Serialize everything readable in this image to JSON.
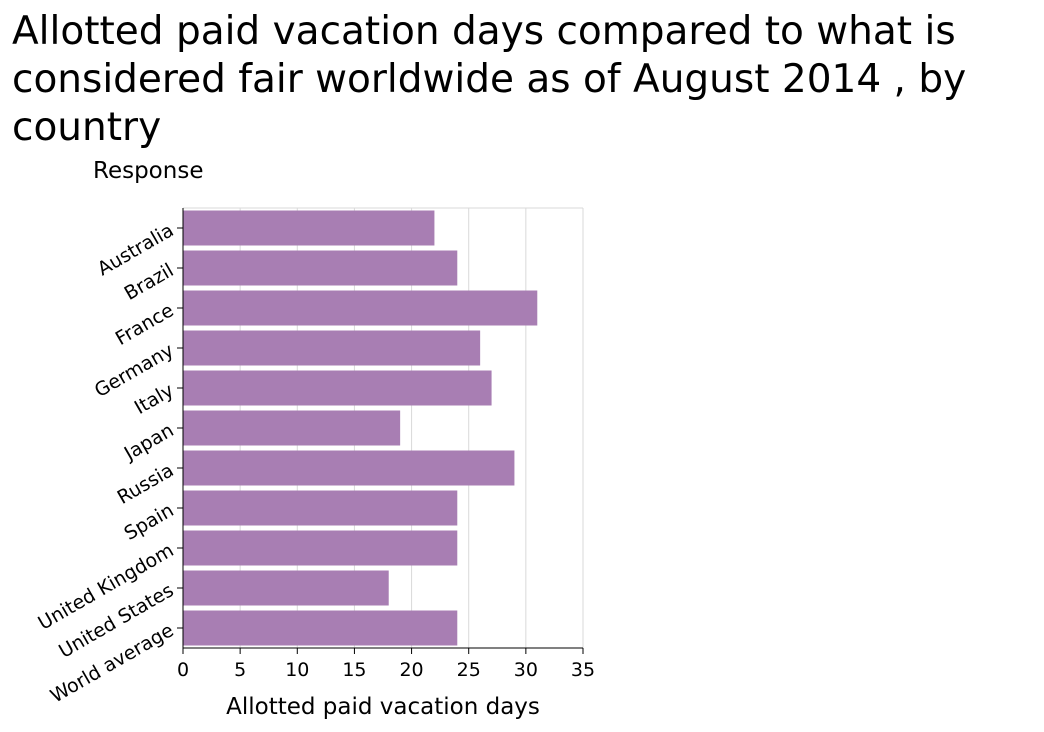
{
  "chart_data": {
    "type": "bar",
    "orientation": "horizontal",
    "title": "Allotted paid vacation days compared to what is considered fair worldwide as of August 2014 , by country",
    "ylabel": "Response",
    "xlabel": "Allotted paid vacation days",
    "categories": [
      "Australia",
      "Brazil",
      "France",
      "Germany",
      "Italy",
      "Japan",
      "Russia",
      "Spain",
      "United Kingdom",
      "United States",
      "World average"
    ],
    "values": [
      22,
      24,
      31,
      26,
      27,
      19,
      29,
      24,
      24,
      18,
      24
    ],
    "xlim": [
      0,
      35
    ],
    "xticks": [
      "0",
      "5",
      "10",
      "15",
      "20",
      "25",
      "30",
      "35"
    ],
    "grid": true,
    "bar_color": "#a87eb3",
    "grid_color": "#d9d9d9"
  }
}
